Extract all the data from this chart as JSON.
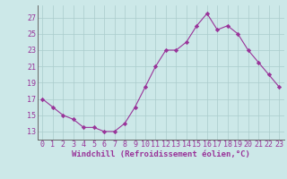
{
  "x": [
    0,
    1,
    2,
    3,
    4,
    5,
    6,
    7,
    8,
    9,
    10,
    11,
    12,
    13,
    14,
    15,
    16,
    17,
    18,
    19,
    20,
    21,
    22,
    23
  ],
  "y": [
    17,
    16,
    15,
    14.5,
    13.5,
    13.5,
    13,
    13,
    14,
    16,
    18.5,
    21,
    23,
    23,
    24,
    26,
    27.5,
    25.5,
    26,
    25,
    23,
    21.5,
    20,
    18.5
  ],
  "line_color": "#993399",
  "marker_color": "#993399",
  "bg_color": "#cce8e8",
  "grid_color": "#aacccc",
  "xlabel": "Windchill (Refroidissement éolien,°C)",
  "yticks": [
    13,
    15,
    17,
    19,
    21,
    23,
    25,
    27
  ],
  "xticks": [
    0,
    1,
    2,
    3,
    4,
    5,
    6,
    7,
    8,
    9,
    10,
    11,
    12,
    13,
    14,
    15,
    16,
    17,
    18,
    19,
    20,
    21,
    22,
    23
  ],
  "ylim": [
    12.0,
    28.5
  ],
  "xlim": [
    -0.5,
    23.5
  ],
  "xlabel_fontsize": 6.5,
  "tick_fontsize": 6,
  "tick_color": "#993399",
  "label_color": "#993399",
  "axis_color": "#666666"
}
